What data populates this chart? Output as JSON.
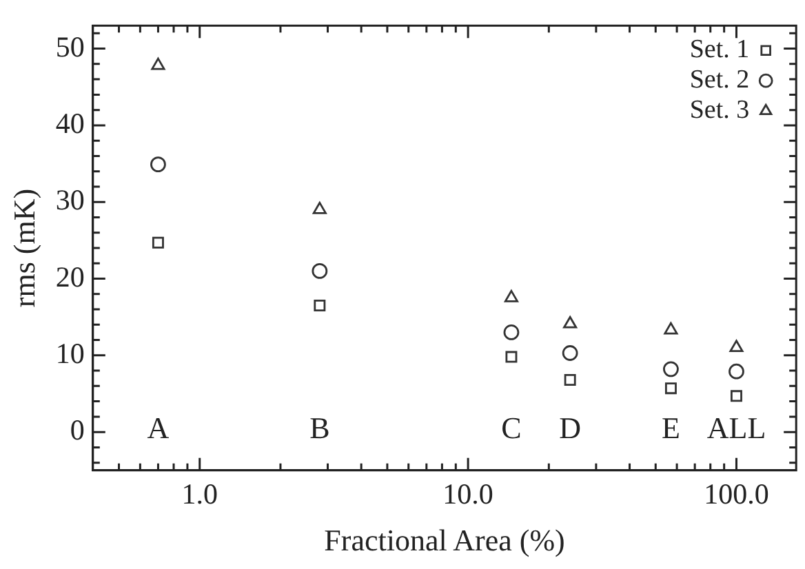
{
  "chart_data": {
    "type": "scatter",
    "xlabel": "Fractional Area (%)",
    "ylabel": "rms (mK)",
    "log": "x",
    "xlim": [
      0.4,
      167
    ],
    "ylim": [
      -5,
      53
    ],
    "xticks": [
      {
        "value": 0.5,
        "label": null
      },
      {
        "value": 0.6,
        "label": null
      },
      {
        "value": 0.7,
        "label": null
      },
      {
        "value": 0.8,
        "label": null
      },
      {
        "value": 0.9,
        "label": null
      },
      {
        "value": 1,
        "label": "1.0"
      },
      {
        "value": 2,
        "label": null
      },
      {
        "value": 3,
        "label": null
      },
      {
        "value": 4,
        "label": null
      },
      {
        "value": 5,
        "label": null
      },
      {
        "value": 6,
        "label": null
      },
      {
        "value": 7,
        "label": null
      },
      {
        "value": 8,
        "label": null
      },
      {
        "value": 9,
        "label": null
      },
      {
        "value": 10,
        "label": "10.0"
      },
      {
        "value": 20,
        "label": null
      },
      {
        "value": 30,
        "label": null
      },
      {
        "value": 40,
        "label": null
      },
      {
        "value": 50,
        "label": null
      },
      {
        "value": 60,
        "label": null
      },
      {
        "value": 70,
        "label": null
      },
      {
        "value": 80,
        "label": null
      },
      {
        "value": 90,
        "label": null
      },
      {
        "value": 100,
        "label": "100.0"
      }
    ],
    "yticks": [
      {
        "value": -4,
        "label": null
      },
      {
        "value": -2,
        "label": null
      },
      0,
      {
        "value": 2,
        "label": null
      },
      {
        "value": 4,
        "label": null
      },
      {
        "value": 6,
        "label": null
      },
      {
        "value": 8,
        "label": null
      },
      10,
      {
        "value": 12,
        "label": null
      },
      {
        "value": 14,
        "label": null
      },
      {
        "value": 16,
        "label": null
      },
      {
        "value": 18,
        "label": null
      },
      20,
      {
        "value": 22,
        "label": null
      },
      {
        "value": 24,
        "label": null
      },
      {
        "value": 26,
        "label": null
      },
      {
        "value": 28,
        "label": null
      },
      30,
      {
        "value": 32,
        "label": null
      },
      {
        "value": 34,
        "label": null
      },
      {
        "value": 36,
        "label": null
      },
      {
        "value": 38,
        "label": null
      },
      40,
      {
        "value": 42,
        "label": null
      },
      {
        "value": 44,
        "label": null
      },
      {
        "value": 46,
        "label": null
      },
      {
        "value": 48,
        "label": null
      },
      50,
      {
        "value": 52,
        "label": null
      }
    ],
    "x": [
      0.7,
      2.8,
      14.5,
      24,
      57,
      100
    ],
    "legend": "top right",
    "series": [
      {
        "name": "Set. 1",
        "color": "#333333",
        "marker": "square",
        "values": [
          24.7,
          16.5,
          9.8,
          6.8,
          5.7,
          4.7
        ]
      },
      {
        "name": "Set. 2",
        "color": "#333333",
        "marker": "circle",
        "values": [
          34.9,
          21.0,
          13.0,
          10.3,
          8.2,
          7.9
        ]
      },
      {
        "name": "Set. 3",
        "color": "#333333",
        "marker": "triangle",
        "values": [
          47.8,
          29.0,
          17.5,
          14.1,
          13.3,
          11.0
        ]
      }
    ],
    "annotations": [
      "A",
      "B",
      "C",
      "D",
      "E",
      "ALL"
    ]
  }
}
